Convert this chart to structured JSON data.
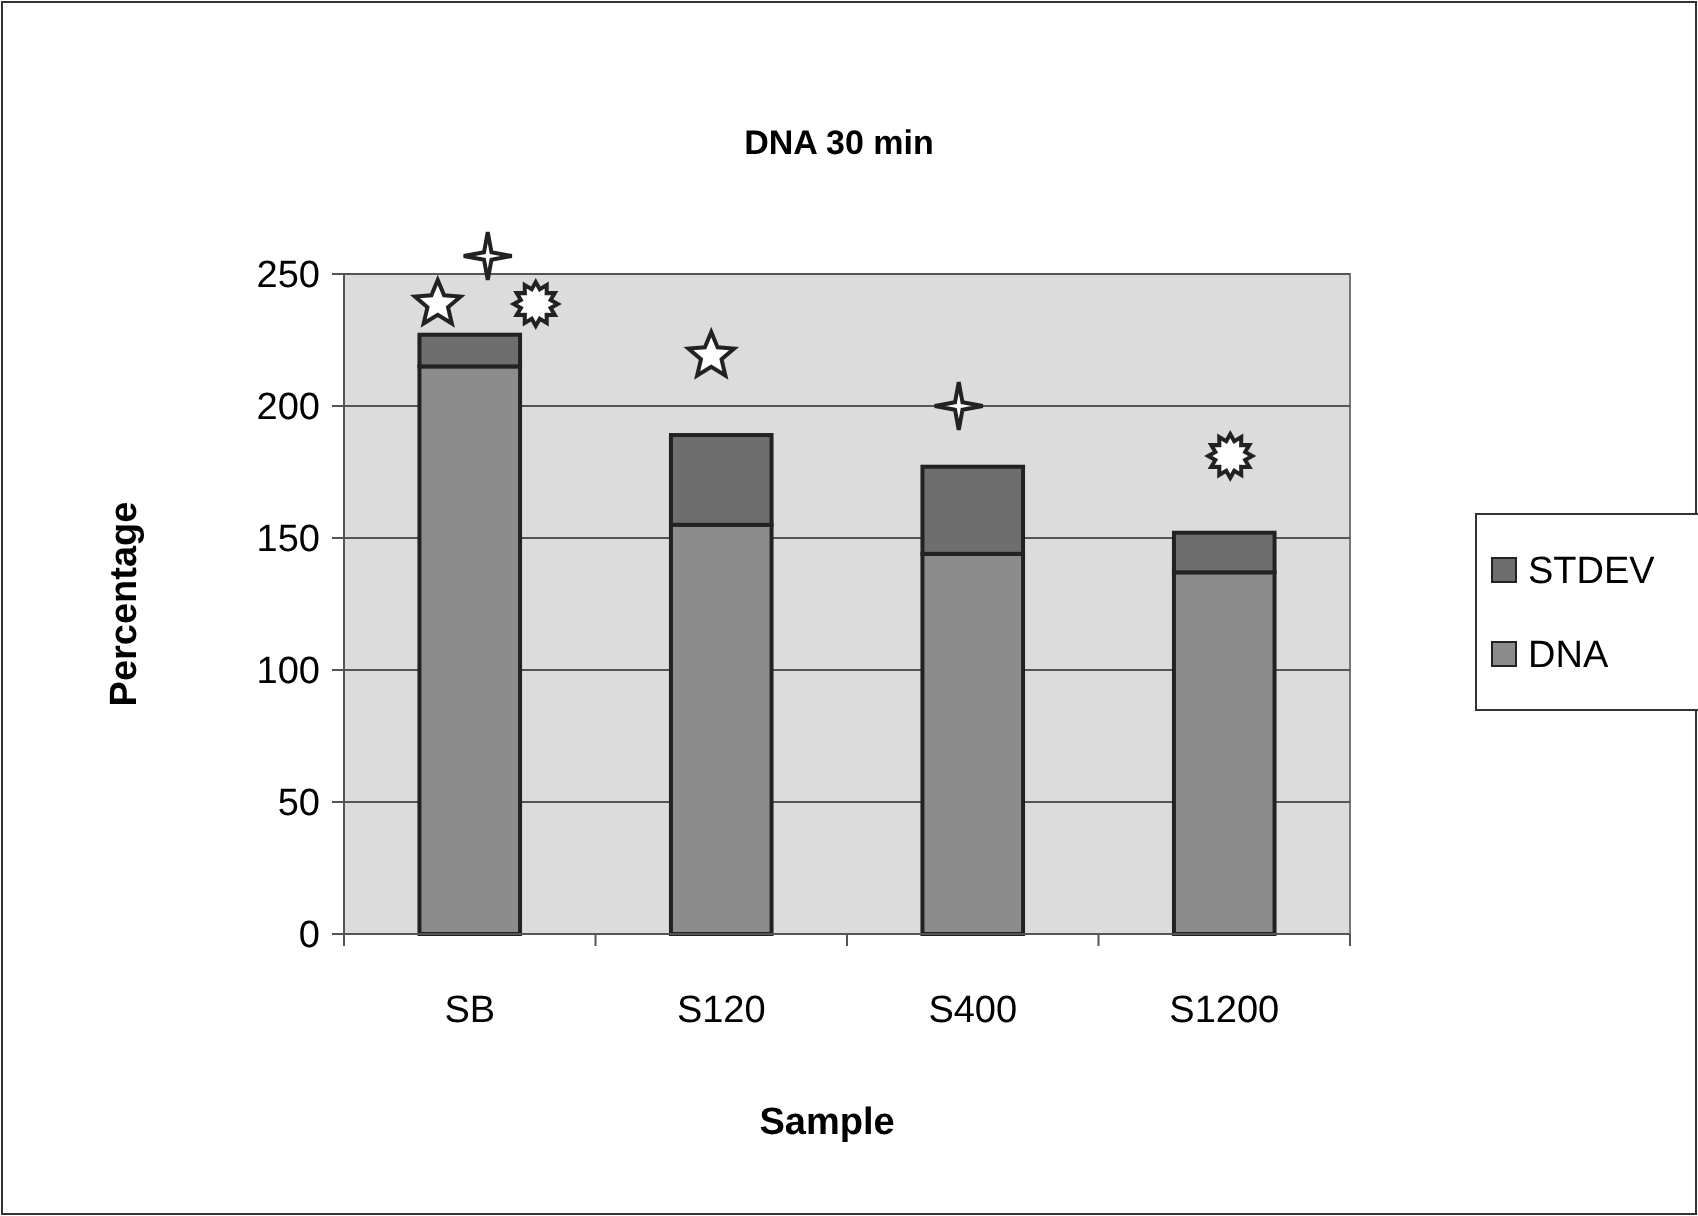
{
  "chart_data": {
    "type": "bar",
    "title": "DNA 30 min",
    "xlabel": "Sample",
    "ylabel": "Percentage",
    "categories": [
      "SB",
      "S120",
      "S400",
      "S1200"
    ],
    "series": [
      {
        "name": "DNA",
        "color": "#8c8c8c",
        "values": [
          215,
          155,
          144,
          137
        ]
      },
      {
        "name": "STDEV",
        "color": "#6e6e6e",
        "values": [
          12,
          34,
          33,
          15
        ]
      }
    ],
    "stacked": true,
    "ylim": [
      0,
      250
    ],
    "yticks": [
      0,
      50,
      100,
      150,
      200,
      250
    ],
    "grid": "y",
    "legend": "right"
  }
}
